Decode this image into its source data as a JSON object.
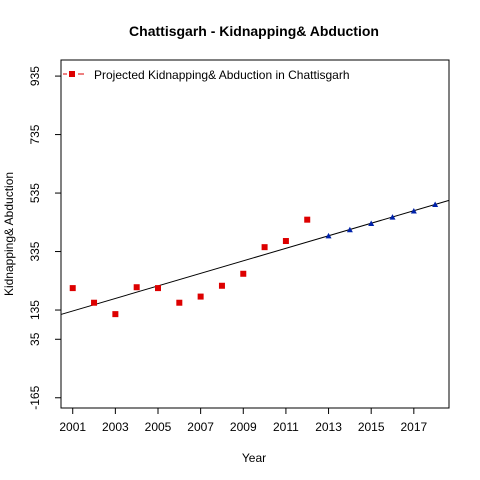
{
  "chart_data": {
    "type": "scatter",
    "title": "Chattisgarh  -  Kidnapping& Abduction",
    "xlabel": "Year",
    "ylabel": "Kidnapping& Abduction",
    "xlim": [
      2000.45,
      2018.65
    ],
    "ylim": [
      -200,
      990
    ],
    "x_ticks": [
      2001,
      2003,
      2005,
      2007,
      2009,
      2011,
      2013,
      2015,
      2017
    ],
    "x_tick_labels": [
      "2001",
      "2003",
      "2005",
      "2007",
      "2009",
      "2011",
      "2013",
      "2015",
      "2017"
    ],
    "y_ticks": [
      -165,
      35,
      135,
      335,
      535,
      735,
      935
    ],
    "y_tick_labels": [
      "-165",
      "35",
      "135",
      "335",
      "535",
      "735",
      "935"
    ],
    "legend": {
      "position": "top-left",
      "entries": [
        {
          "label": "Projected Kidnapping& Abduction  in  Chattisgarh",
          "marker": "square",
          "color": "#dd0000"
        }
      ]
    },
    "series": [
      {
        "marker": "square",
        "color": "#dd0000",
        "x": [
          2001,
          2002,
          2003,
          2004,
          2005,
          2006,
          2007,
          2008,
          2009,
          2010,
          2011,
          2012
        ],
        "y": [
          210,
          160,
          121,
          213,
          210,
          160,
          181,
          218,
          259,
          350,
          371,
          444
        ]
      },
      {
        "marker": "triangle",
        "color": "#0022aa",
        "x": [
          2013,
          2014,
          2015,
          2016,
          2017,
          2018
        ],
        "y": [
          387,
          408,
          429,
          451,
          472,
          494
        ]
      }
    ],
    "trend_line": {
      "x": [
        2000.45,
        2018.65
      ],
      "y": [
        120,
        510
      ],
      "color": "#000000"
    }
  }
}
